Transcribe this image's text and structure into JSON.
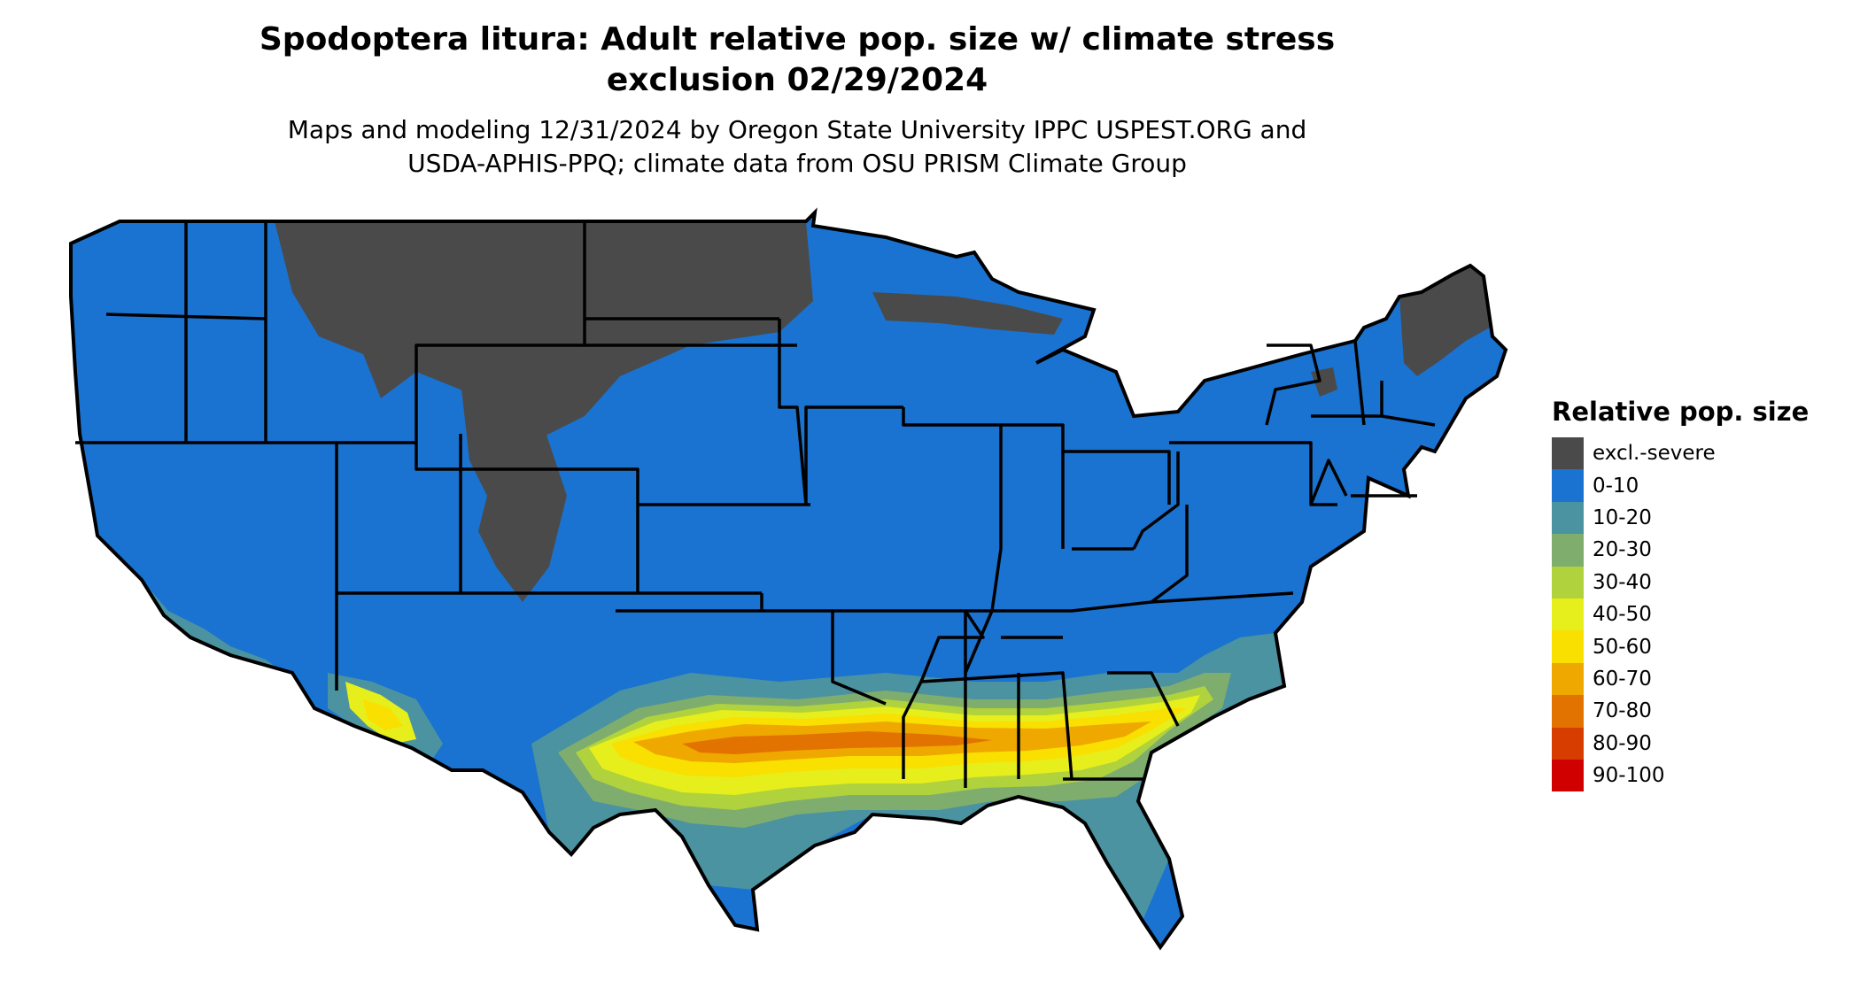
{
  "title": {
    "line1": "Spodoptera litura: Adult relative pop. size w/ climate stress",
    "line2": "exclusion 02/29/2024"
  },
  "subtitle": {
    "line1": "Maps and modeling 12/31/2024 by Oregon State University IPPC USPEST.ORG and",
    "line2": "USDA-APHIS-PPQ; climate data from OSU PRISM Climate Group"
  },
  "map": {
    "region": "Contiguous United States",
    "base_class_color": "#1a73d1",
    "excluded_color": "#4a4a4a",
    "boundary_color": "#000000"
  },
  "legend": {
    "title": "Relative pop. size",
    "items": [
      {
        "label": "excl.-severe",
        "color": "#4a4a4a"
      },
      {
        "label": "0-10",
        "color": "#1a73d1"
      },
      {
        "label": "10-20",
        "color": "#4b93a0"
      },
      {
        "label": "20-30",
        "color": "#7fad6e"
      },
      {
        "label": "30-40",
        "color": "#b0d23d"
      },
      {
        "label": "40-50",
        "color": "#e6ee1c"
      },
      {
        "label": "50-60",
        "color": "#f9e000"
      },
      {
        "label": "60-70",
        "color": "#efa800"
      },
      {
        "label": "70-80",
        "color": "#e37300"
      },
      {
        "label": "80-90",
        "color": "#d83d00"
      },
      {
        "label": "90-100",
        "color": "#d00000"
      }
    ]
  }
}
